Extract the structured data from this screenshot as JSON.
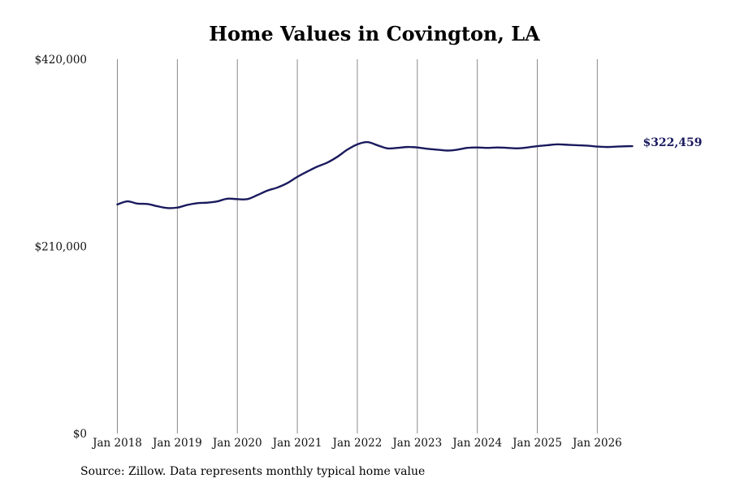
{
  "chart_data": {
    "type": "line",
    "title": "Home Values in Covington, LA",
    "xlabel": "",
    "ylabel": "",
    "ylim": [
      0,
      420000
    ],
    "y_ticks": [
      0,
      210000,
      420000
    ],
    "y_tick_labels": [
      "$0",
      "$210,000",
      "$420,000"
    ],
    "x_ticks": [
      "2018-01",
      "2019-01",
      "2020-01",
      "2021-01",
      "2022-01",
      "2023-01",
      "2024-01",
      "2025-01",
      "2026-01"
    ],
    "x_tick_labels": [
      "Jan 2018",
      "Jan 2019",
      "Jan 2020",
      "Jan 2021",
      "Jan 2022",
      "Jan 2023",
      "Jan 2024",
      "Jan 2025",
      "Jan 2026"
    ],
    "grid": "vertical lines at x ticks",
    "series": [
      {
        "color": "#1a1a5e",
        "x": [
          "2018-01",
          "2018-03",
          "2018-05",
          "2018-07",
          "2018-09",
          "2018-11",
          "2019-01",
          "2019-03",
          "2019-05",
          "2019-07",
          "2019-09",
          "2019-11",
          "2020-01",
          "2020-03",
          "2020-05",
          "2020-07",
          "2020-09",
          "2020-11",
          "2021-01",
          "2021-03",
          "2021-05",
          "2021-07",
          "2021-09",
          "2021-11",
          "2022-01",
          "2022-03",
          "2022-05",
          "2022-07",
          "2022-09",
          "2022-11",
          "2023-01",
          "2023-03",
          "2023-05",
          "2023-07",
          "2023-09",
          "2023-11",
          "2024-01",
          "2024-03",
          "2024-05",
          "2024-07",
          "2024-09",
          "2024-11",
          "2025-01",
          "2025-03",
          "2025-05",
          "2025-07",
          "2025-09",
          "2025-11",
          "2026-01",
          "2026-03",
          "2026-05",
          "2026-07",
          "2026-08"
        ],
        "values": [
          257000,
          260500,
          258000,
          257500,
          255000,
          253000,
          253500,
          256500,
          258500,
          259000,
          260500,
          263500,
          263000,
          263000,
          267500,
          272500,
          276000,
          281000,
          288000,
          294000,
          299500,
          304000,
          310500,
          318500,
          324500,
          327000,
          323500,
          320000,
          320500,
          321500,
          321000,
          319500,
          318500,
          317500,
          318500,
          320500,
          321000,
          320500,
          321000,
          320500,
          320000,
          321000,
          322500,
          323500,
          324500,
          324000,
          323500,
          323000,
          322000,
          321500,
          322000,
          322400,
          322459
        ]
      }
    ],
    "end_label": "$322,459"
  },
  "source": "Source: Zillow. Data represents monthly typical home value"
}
